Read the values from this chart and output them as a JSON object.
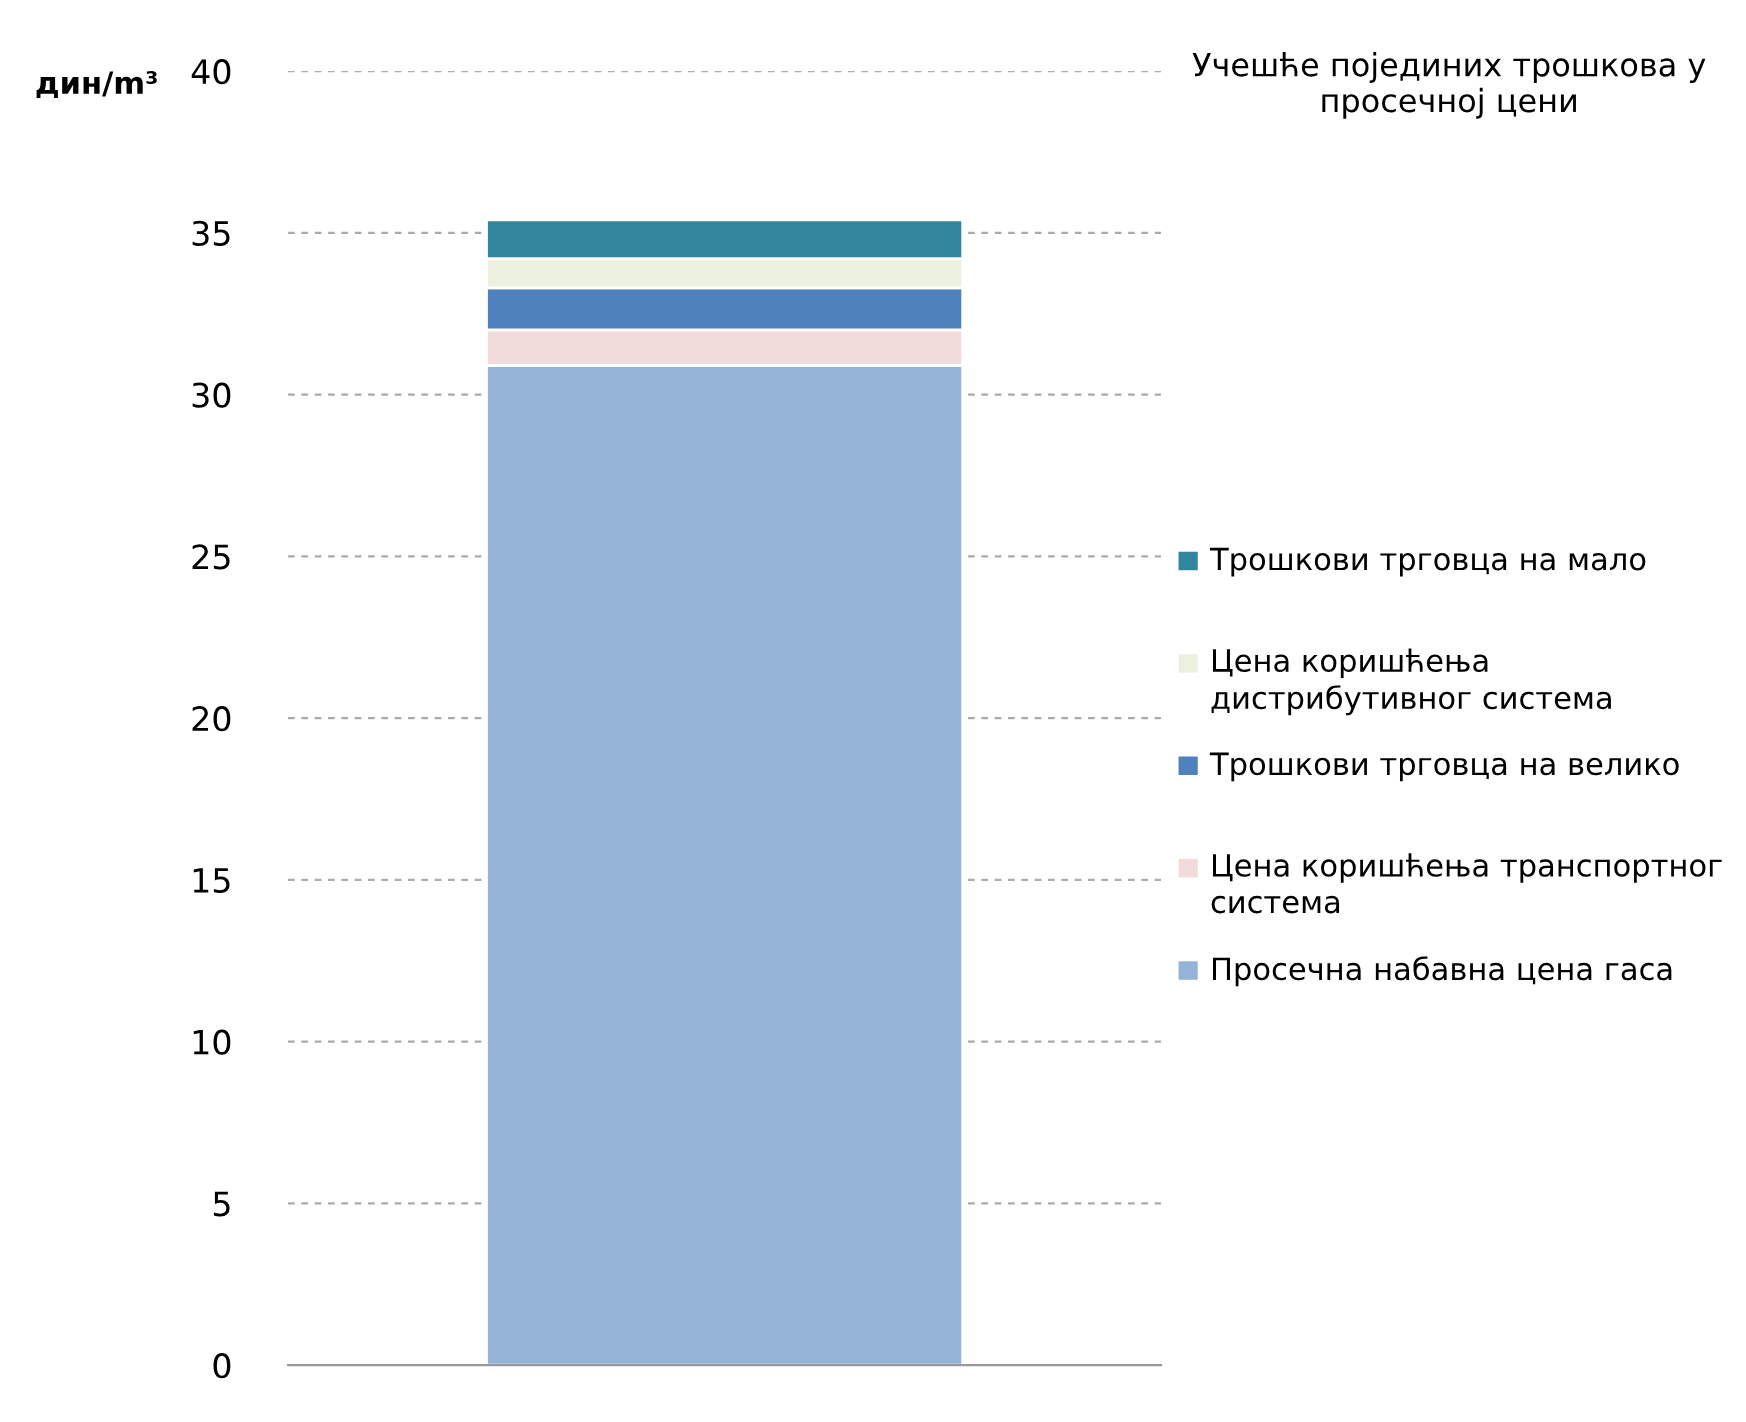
{
  "chart_data": {
    "type": "bar",
    "stacked": true,
    "title": "Учешће појединих трошкова у просечној цени",
    "ylabel": "дин/m³",
    "categories": [
      null
    ],
    "series": [
      {
        "name": "Просечна набавна цена гаса",
        "color": "#95b3d7",
        "values": [
          30.9
        ]
      },
      {
        "name": "Цена коришћења транспортног система",
        "color": "#f2dcdb",
        "values": [
          1.1
        ]
      },
      {
        "name": "Трошкови трговца на велико",
        "color": "#4f81bd",
        "values": [
          1.3
        ]
      },
      {
        "name": "Цена коришћења дистрибутивног система",
        "color": "#ebf1de",
        "values": [
          0.9
        ]
      },
      {
        "name": "Трошкови трговца на мало",
        "color": "#31859c",
        "values": [
          1.2
        ]
      }
    ],
    "ylim": [
      0,
      40
    ],
    "yticks": [
      0,
      5,
      10,
      15,
      20,
      25,
      30,
      35,
      40
    ],
    "grid": "y",
    "legend": "right"
  }
}
